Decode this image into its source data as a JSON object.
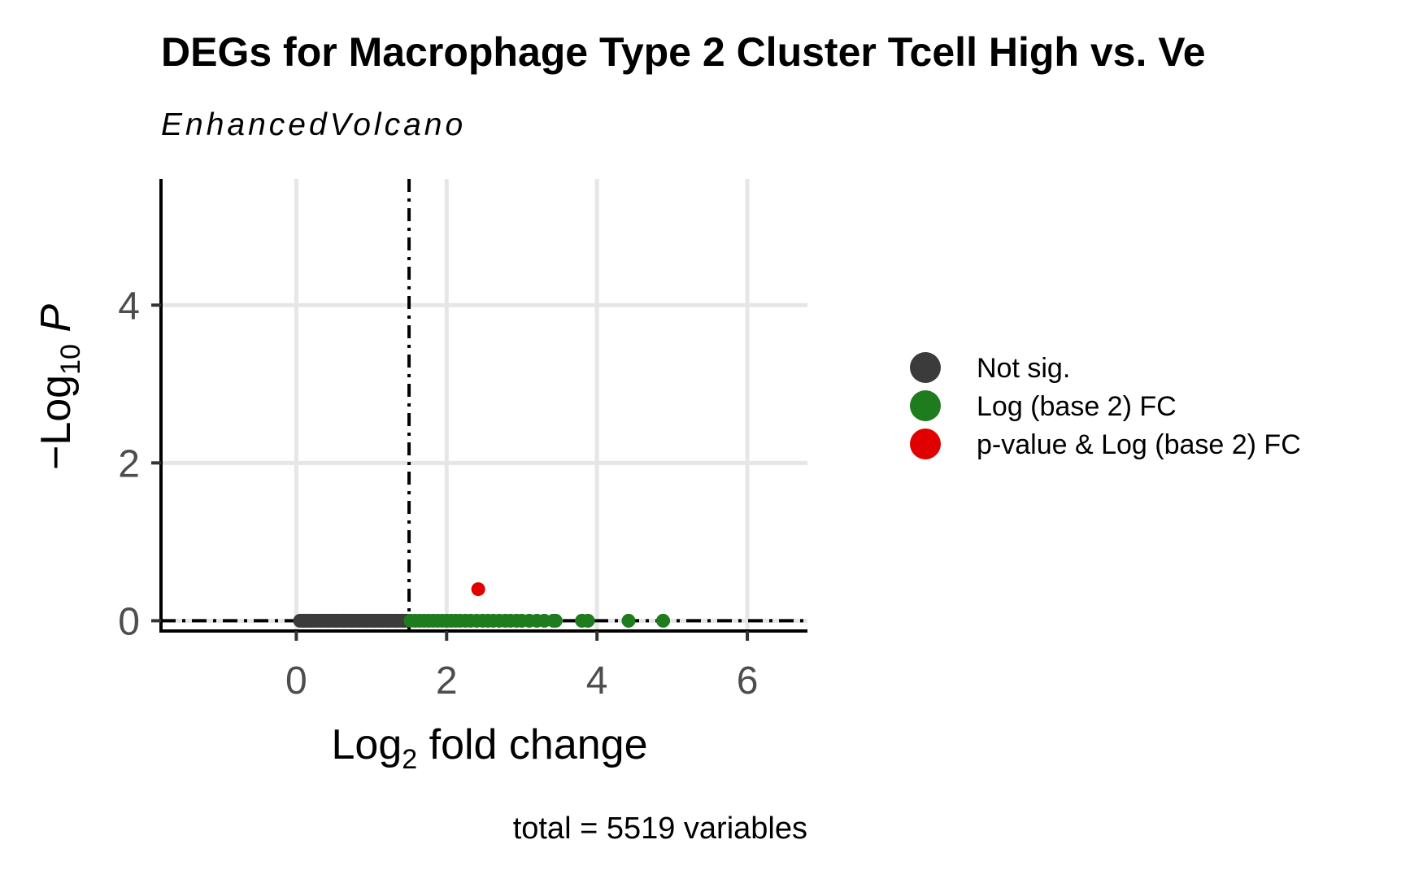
{
  "chart_data": {
    "type": "scatter",
    "title": "DEGs for Macrophage Type 2 Cluster Tcell High vs. Ve",
    "subtitle": "EnhancedVolcano",
    "xlabel": "Log2 fold change",
    "ylabel": "-Log10 P",
    "xlim": [
      -1.8,
      6.8
    ],
    "ylim": [
      -0.13,
      5.6
    ],
    "x_ticks": [
      0,
      2,
      4,
      6
    ],
    "y_ticks": [
      0,
      2,
      4
    ],
    "grid": true,
    "legend_position": "right",
    "fc_cutoff": 1.5,
    "p_cutoff_line_y": 0,
    "caption": "total = 5519 variables",
    "colors": {
      "not_sig": "#3b3b3b",
      "log2fc": "#1e7b1e",
      "p_and_log2fc": "#e00000",
      "grid": "#e6e6e6",
      "cutoff_line": "#000000"
    },
    "series": [
      {
        "name": "Not sig.",
        "color": "#3b3b3b",
        "x": [
          0.05,
          0.08,
          0.1,
          0.12,
          0.15,
          0.18,
          0.2,
          0.23,
          0.26,
          0.3,
          0.33,
          0.36,
          0.4,
          0.43,
          0.46,
          0.5,
          0.53,
          0.56,
          0.6,
          0.63,
          0.66,
          0.7,
          0.73,
          0.76,
          0.8,
          0.83,
          0.86,
          0.9,
          0.93,
          0.96,
          1.0,
          1.03,
          1.06,
          1.1,
          1.13,
          1.16,
          1.2,
          1.23,
          1.26,
          1.3,
          1.33,
          1.36,
          1.4,
          1.43,
          1.47
        ],
        "y": [
          0,
          0,
          0,
          0,
          0,
          0,
          0,
          0,
          0,
          0,
          0,
          0,
          0,
          0,
          0,
          0,
          0,
          0,
          0,
          0,
          0,
          0,
          0,
          0,
          0,
          0,
          0,
          0,
          0,
          0,
          0,
          0,
          0,
          0,
          0,
          0,
          0,
          0,
          0,
          0,
          0,
          0,
          0,
          0,
          0
        ]
      },
      {
        "name": "Log (base 2) FC",
        "color": "#1e7b1e",
        "x": [
          1.52,
          1.58,
          1.64,
          1.7,
          1.76,
          1.82,
          1.88,
          1.94,
          2.0,
          2.06,
          2.12,
          2.18,
          2.25,
          2.32,
          2.4,
          2.48,
          2.55,
          2.62,
          2.7,
          2.78,
          2.85,
          2.93,
          3.0,
          3.1,
          3.2,
          3.3,
          3.42,
          3.45,
          3.8,
          3.88,
          4.42,
          4.88
        ],
        "y": [
          0,
          0,
          0,
          0,
          0,
          0,
          0,
          0,
          0,
          0,
          0,
          0,
          0,
          0,
          0,
          0,
          0,
          0,
          0,
          0,
          0,
          0,
          0,
          0,
          0,
          0,
          0,
          0,
          0,
          0,
          0,
          0
        ]
      },
      {
        "name": "p-value & Log (base 2) FC",
        "color": "#e00000",
        "x": [
          2.42
        ],
        "y": [
          0.4
        ]
      }
    ]
  }
}
